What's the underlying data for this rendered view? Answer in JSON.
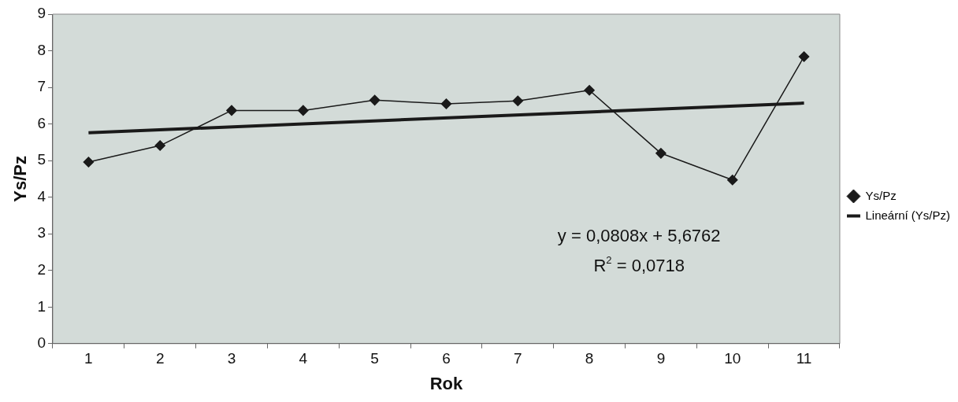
{
  "chart_data": {
    "type": "line",
    "xlabel": "Rok",
    "ylabel": "Ys/Pz",
    "categories": [
      "1",
      "2",
      "3",
      "4",
      "5",
      "6",
      "7",
      "8",
      "9",
      "10",
      "11"
    ],
    "ylim": [
      0,
      9
    ],
    "yticks": [
      0,
      1,
      2,
      3,
      4,
      5,
      6,
      7,
      8,
      9
    ],
    "legend": "right",
    "marker": "diamond",
    "series": [
      {
        "name": "Ys/Pz",
        "color": "#1a1a1a",
        "values": [
          4.96,
          5.41,
          6.37,
          6.37,
          6.65,
          6.55,
          6.63,
          6.92,
          5.2,
          4.47,
          7.84
        ]
      },
      {
        "name": "Lineární (Ys/Pz)",
        "type": "line",
        "color": "#1a1a1a",
        "marker": "none",
        "x": [
          "1",
          "11"
        ],
        "values": [
          5.76,
          6.57
        ]
      }
    ],
    "annotations": [
      "y = 0,0808x + 5,6762",
      "R$^{2}$ = 0,0718"
    ]
  }
}
